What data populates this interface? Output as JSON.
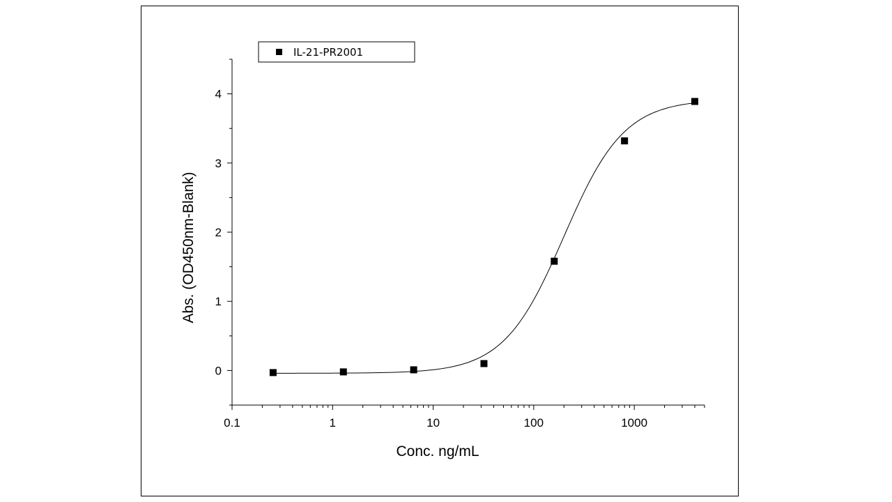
{
  "chart_data": {
    "type": "scatter",
    "xscale": "log",
    "xlim": [
      0.1,
      5000
    ],
    "ylim": [
      -0.5,
      4.5
    ],
    "xticks": [
      0.1,
      1,
      10,
      100,
      1000
    ],
    "xtick_labels": [
      "0.1",
      "1",
      "10",
      "100",
      "1000"
    ],
    "yticks": [
      0,
      1,
      2,
      3,
      4
    ],
    "ytick_labels": [
      "0",
      "1",
      "2",
      "3",
      "4"
    ],
    "xlabel": "Conc. ng/mL",
    "ylabel": "Abs. (OD450nm-Blank)",
    "legend": {
      "position": "top-left",
      "entries": [
        "IL-21-PR2001"
      ]
    },
    "grid": false,
    "series": [
      {
        "name": "IL-21-PR2001",
        "marker": "square",
        "color": "#000000",
        "x": [
          0.256,
          1.28,
          6.4,
          32,
          160,
          800,
          4000
        ],
        "y": [
          -0.03,
          -0.02,
          0.01,
          0.1,
          1.58,
          3.32,
          3.89
        ]
      }
    ],
    "fit_curve": {
      "type": "4PL",
      "bottom": -0.04,
      "top": 3.92,
      "ec50": 200,
      "hill": 1.45
    }
  }
}
